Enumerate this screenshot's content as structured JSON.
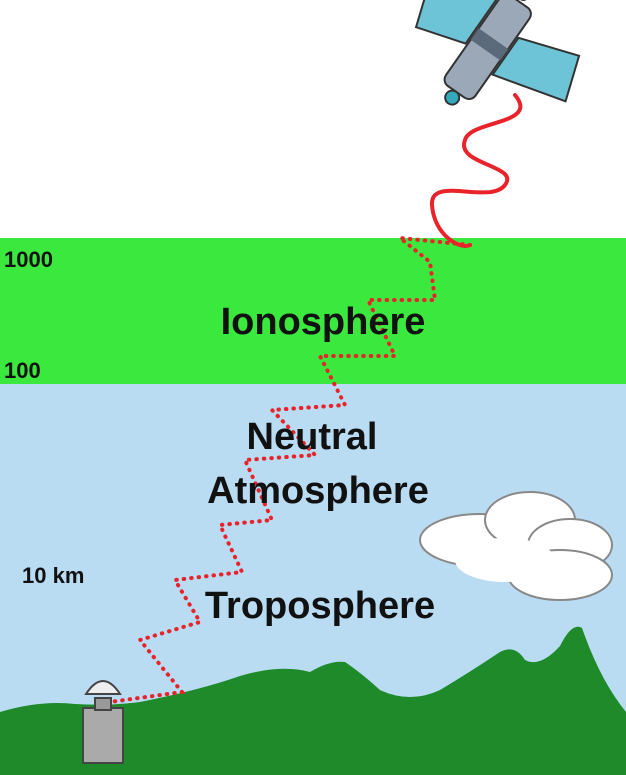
{
  "ionosphere": {
    "top": "1000",
    "label": "Ionosphere",
    "bottom": "100"
  },
  "neutral_atmosphere": {
    "label_lines": [
      "Neutral",
      "Atmosphere"
    ]
  },
  "troposphere": {
    "top": "10 km",
    "label": "Troposphere"
  }
}
